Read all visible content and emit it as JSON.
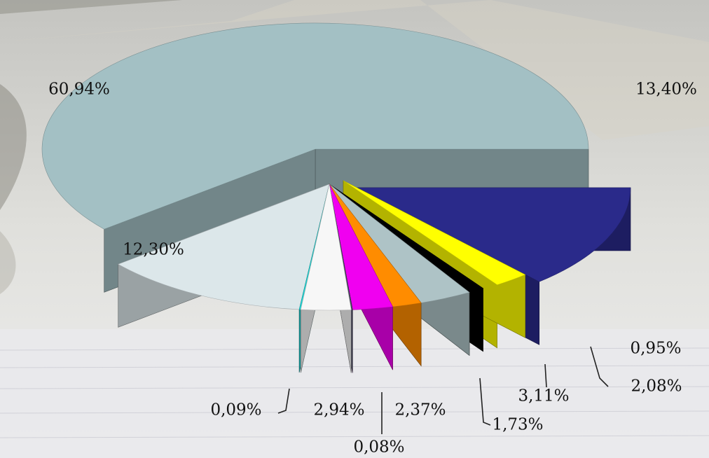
{
  "chart_data": {
    "type": "pie",
    "style": "3d-exploded",
    "labels_format": "percent",
    "slices": [
      {
        "value": 60.94,
        "label": "60,94%",
        "color": "#a3c0c4"
      },
      {
        "value": 12.3,
        "label": "12,30%",
        "color": "#dce7ea"
      },
      {
        "value": 0.09,
        "label": "0,09%",
        "color": "#1cd8d8"
      },
      {
        "value": 2.94,
        "label": "2,94%",
        "color": "#f7f7f7"
      },
      {
        "value": 0.08,
        "label": "0,08%",
        "color": "#47475f"
      },
      {
        "value": 2.37,
        "label": "2,37%",
        "color": "#f000f0"
      },
      {
        "value": 1.73,
        "label": "1,73%",
        "color": "#ff8c00"
      },
      {
        "value": 3.11,
        "label": "3,11%",
        "color": "#aec3c6"
      },
      {
        "value": 0.95,
        "label": "0,95%",
        "color": "#000000"
      },
      {
        "value": 2.08,
        "label": "2,08%",
        "color": "#ffff00"
      },
      {
        "value": 13.4,
        "label": "13,40%",
        "color": "#2a2a8a"
      }
    ]
  }
}
